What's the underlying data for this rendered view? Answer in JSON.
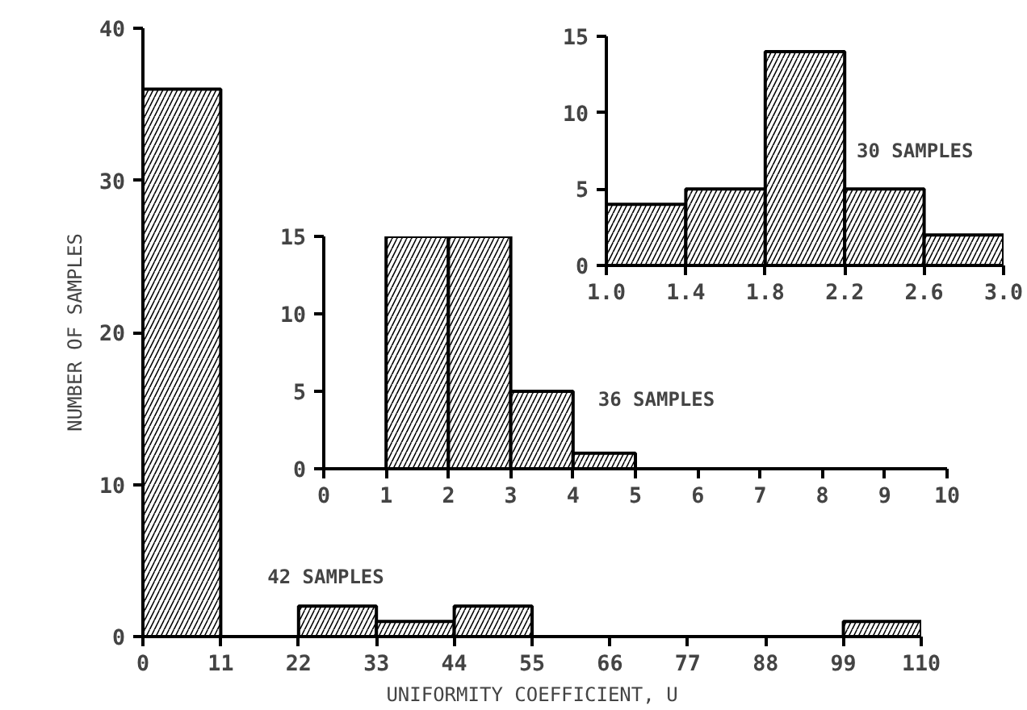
{
  "chart_data": [
    {
      "type": "histogram",
      "xlabel": "UNIFORMITY COEFFICIENT, U",
      "ylabel": "NUMBER OF SAMPLES",
      "annotations": [
        "42 SAMPLES"
      ],
      "bins": [
        0,
        11,
        22,
        33,
        44,
        55,
        66,
        77,
        88,
        99,
        110
      ],
      "values": [
        36,
        0,
        2,
        1,
        2,
        0,
        0,
        0,
        0,
        1
      ],
      "color": "#000000",
      "xlim": [
        0,
        110
      ],
      "xticks": [
        0,
        11,
        22,
        33,
        44,
        55,
        66,
        77,
        88,
        99,
        110
      ],
      "ylim": [
        0,
        40
      ],
      "yticks": [
        0,
        10,
        20,
        30,
        40
      ],
      "grid": false
    },
    {
      "type": "histogram",
      "annotations": [
        "36 SAMPLES"
      ],
      "bins": [
        0,
        1,
        2,
        3,
        4,
        5,
        6,
        7,
        8,
        9,
        10
      ],
      "values": [
        0,
        15,
        15,
        5,
        1,
        0,
        0,
        0,
        0,
        0
      ],
      "color": "#000000",
      "xlim": [
        0,
        10
      ],
      "xticks": [
        0,
        1,
        2,
        3,
        4,
        5,
        6,
        7,
        8,
        9,
        10
      ],
      "ylim": [
        0,
        15
      ],
      "yticks": [
        0,
        5,
        10,
        15
      ],
      "grid": false
    },
    {
      "type": "histogram",
      "annotations": [
        "30 SAMPLES"
      ],
      "bins": [
        1.0,
        1.4,
        1.8,
        2.2,
        2.6,
        3.0
      ],
      "values": [
        4,
        5,
        14,
        5,
        2
      ],
      "color": "#000000",
      "xlim": [
        1.0,
        3.0
      ],
      "xticks": [
        {
          "value": 1.0,
          "label": "1.0"
        },
        {
          "value": 1.4,
          "label": "1.4"
        },
        {
          "value": 1.8,
          "label": "1.8"
        },
        {
          "value": 2.2,
          "label": "2.2"
        },
        {
          "value": 2.6,
          "label": "2.6"
        },
        {
          "value": 3.0,
          "label": "3.0"
        }
      ],
      "ylim": [
        0,
        15
      ],
      "yticks": [
        0,
        5,
        10,
        15
      ],
      "grid": false
    }
  ]
}
